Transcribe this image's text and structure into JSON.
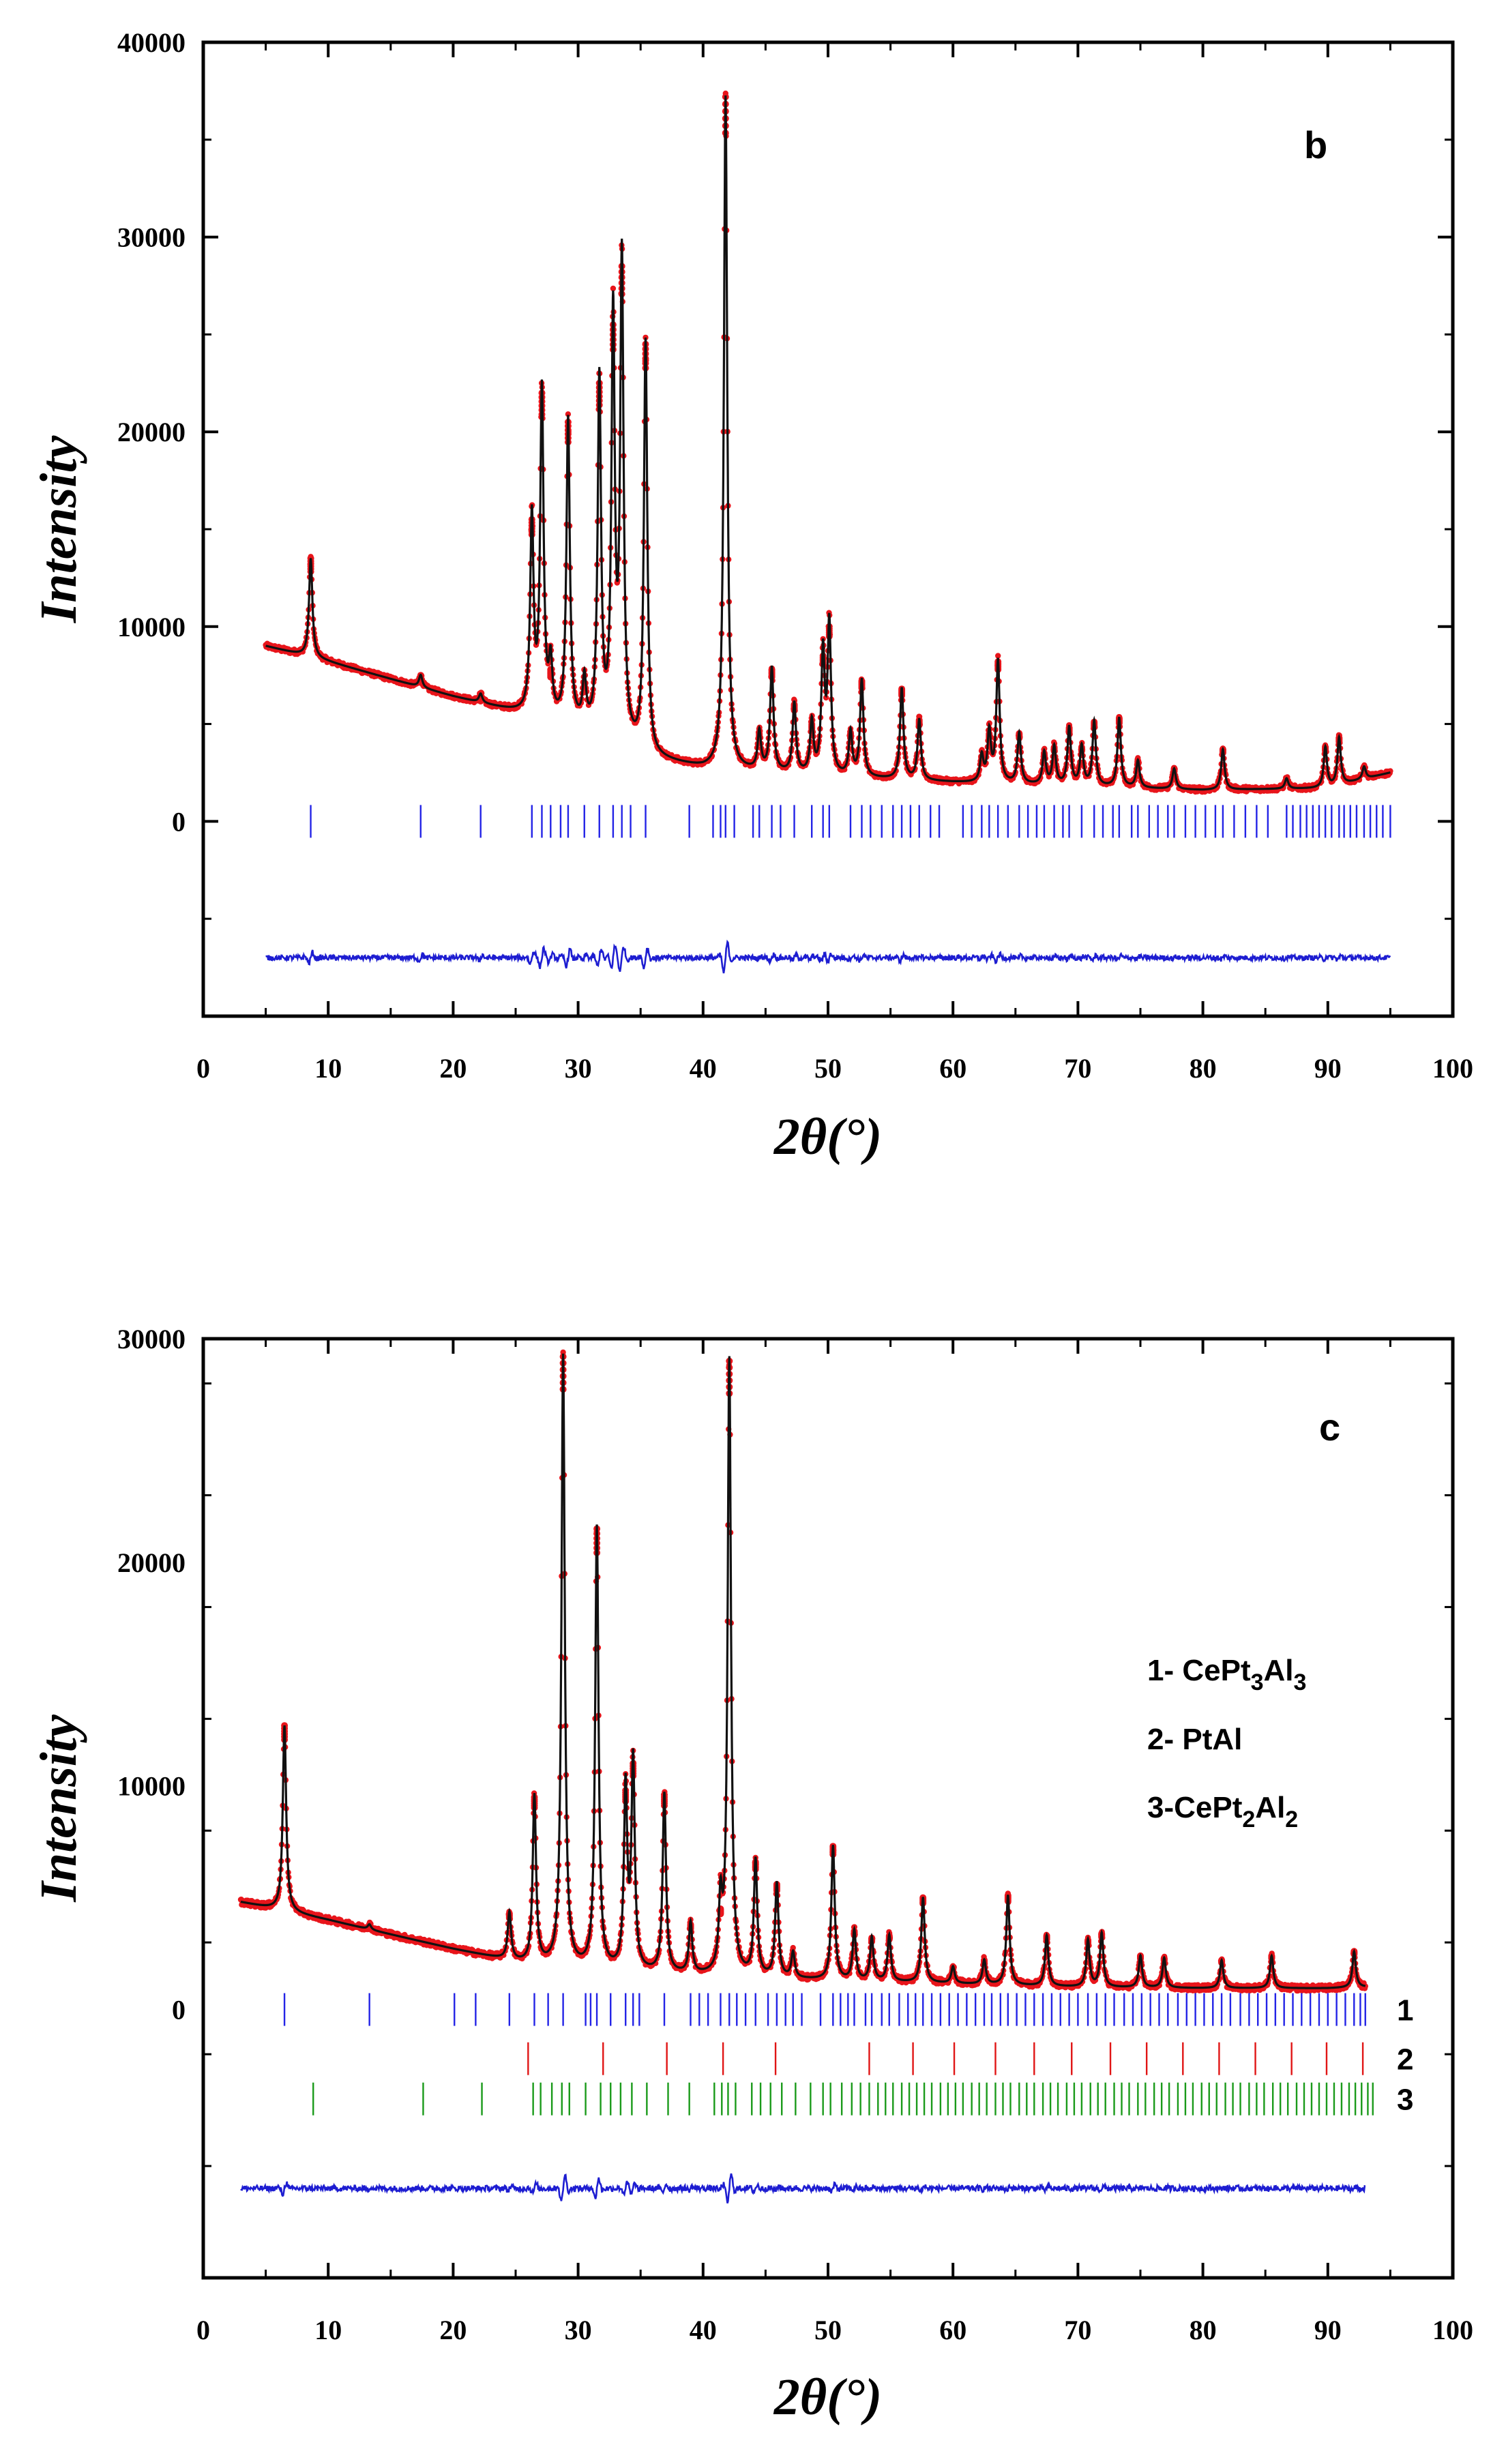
{
  "chart_data": [
    {
      "type": "line",
      "panel_label": "b",
      "title": "",
      "xlabel": "2θ(°)",
      "ylabel": "Intensity",
      "xlim": [
        0,
        100
      ],
      "ylim": [
        -10000,
        40000
      ],
      "x_ticks": [
        0,
        10,
        20,
        30,
        40,
        50,
        60,
        70,
        80,
        90,
        100
      ],
      "y_ticks": [
        0,
        10000,
        20000,
        30000,
        40000
      ],
      "x_tick_labels": [
        "0",
        "10",
        "20",
        "30",
        "40",
        "50",
        "60",
        "70",
        "80",
        "90",
        "100"
      ],
      "y_tick_labels": [
        "0",
        "10000",
        "20000",
        "30000",
        "40000"
      ],
      "background": {
        "x": [
          5,
          10,
          20,
          30,
          36,
          40,
          50,
          60,
          70,
          80,
          90,
          95
        ],
        "y": [
          9000,
          8200,
          6400,
          4800,
          3200,
          2700,
          2300,
          2000,
          1800,
          1600,
          1700,
          2500
        ]
      },
      "peaks": [
        {
          "x": 8.6,
          "y": 13500
        },
        {
          "x": 17.4,
          "y": 7500
        },
        {
          "x": 22.2,
          "y": 6500
        },
        {
          "x": 26.3,
          "y": 15500
        },
        {
          "x": 27.1,
          "y": 22000
        },
        {
          "x": 27.8,
          "y": 7800
        },
        {
          "x": 29.2,
          "y": 20500
        },
        {
          "x": 30.5,
          "y": 7000
        },
        {
          "x": 31.7,
          "y": 22500
        },
        {
          "x": 32.8,
          "y": 25500
        },
        {
          "x": 33.5,
          "y": 28500
        },
        {
          "x": 35.4,
          "y": 24500
        },
        {
          "x": 41.8,
          "y": 37200
        },
        {
          "x": 44.5,
          "y": 4500
        },
        {
          "x": 45.5,
          "y": 7800
        },
        {
          "x": 47.3,
          "y": 6000
        },
        {
          "x": 48.7,
          "y": 5000
        },
        {
          "x": 49.6,
          "y": 8500
        },
        {
          "x": 50.1,
          "y": 10000
        },
        {
          "x": 51.8,
          "y": 4500
        },
        {
          "x": 52.7,
          "y": 7200
        },
        {
          "x": 55.9,
          "y": 6800
        },
        {
          "x": 57.3,
          "y": 5200
        },
        {
          "x": 62.3,
          "y": 3300
        },
        {
          "x": 62.9,
          "y": 4500
        },
        {
          "x": 63.6,
          "y": 8200
        },
        {
          "x": 65.3,
          "y": 4500
        },
        {
          "x": 67.3,
          "y": 3500
        },
        {
          "x": 68.1,
          "y": 3800
        },
        {
          "x": 69.3,
          "y": 4800
        },
        {
          "x": 70.3,
          "y": 3800
        },
        {
          "x": 71.3,
          "y": 5100
        },
        {
          "x": 73.3,
          "y": 5300
        },
        {
          "x": 74.8,
          "y": 3100
        },
        {
          "x": 77.7,
          "y": 2700
        },
        {
          "x": 81.6,
          "y": 3700
        },
        {
          "x": 86.7,
          "y": 2200
        },
        {
          "x": 89.8,
          "y": 3800
        },
        {
          "x": 90.9,
          "y": 4300
        },
        {
          "x": 92.9,
          "y": 2800
        }
      ],
      "series": [
        {
          "name": "observed",
          "color": "#e8151b",
          "style": "dots"
        },
        {
          "name": "calculated",
          "color": "#111111",
          "style": "line"
        },
        {
          "name": "difference",
          "color": "#1d1dd1",
          "style": "line",
          "offset": -7000,
          "range": [
            5,
            95
          ]
        }
      ],
      "bragg_rows": [
        {
          "label": "",
          "color": "#2323e6",
          "y_center": 0,
          "positions": [
            8.6,
            17.4,
            22.2,
            26.3,
            27.1,
            27.8,
            28.6,
            29.2,
            30.5,
            31.7,
            32.8,
            33.5,
            34.2,
            35.4,
            38.9,
            40.8,
            41.4,
            41.8,
            42.5,
            44.0,
            44.5,
            45.5,
            46.2,
            47.3,
            48.7,
            49.6,
            50.1,
            51.8,
            52.7,
            53.4,
            54.3,
            55.2,
            55.9,
            56.6,
            57.3,
            58.2,
            58.9,
            60.8,
            61.5,
            62.3,
            62.9,
            63.6,
            64.4,
            65.3,
            66.0,
            66.7,
            67.3,
            68.1,
            68.8,
            69.3,
            70.3,
            71.3,
            72.0,
            72.8,
            73.3,
            74.3,
            74.8,
            75.7,
            76.4,
            77.2,
            77.7,
            78.6,
            79.4,
            80.2,
            81.0,
            81.6,
            82.5,
            83.4,
            84.3,
            85.2,
            86.7,
            87.2,
            87.8,
            88.3,
            88.8,
            89.3,
            89.8,
            90.3,
            90.9,
            91.3,
            91.8,
            92.3,
            92.9,
            93.4,
            93.9,
            94.4,
            95.0
          ]
        }
      ]
    },
    {
      "type": "line",
      "panel_label": "c",
      "title": "",
      "xlabel": "2θ(°)",
      "ylabel": "Intensity",
      "xlim": [
        0,
        100
      ],
      "ylim": [
        -12000,
        30000
      ],
      "x_ticks": [
        0,
        10,
        20,
        30,
        40,
        50,
        60,
        70,
        80,
        90,
        100
      ],
      "y_ticks": [
        0,
        10000,
        20000,
        30000
      ],
      "x_tick_labels": [
        "0",
        "10",
        "20",
        "30",
        "40",
        "50",
        "60",
        "70",
        "80",
        "90",
        "100"
      ],
      "y_tick_labels": [
        "0",
        "10000",
        "20000",
        "30000"
      ],
      "legend": {
        "placement": "right",
        "entries": [
          {
            "text": "1- CePt",
            "sub1": "3",
            "mid": "Al",
            "sub2": "3"
          },
          {
            "text": "2- PtAl",
            "sub1": "",
            "mid": "",
            "sub2": ""
          },
          {
            "text": "3-CePt",
            "sub1": "2",
            "mid": "Al",
            "sub2": "2"
          }
        ]
      },
      "background": {
        "x": [
          3,
          10,
          20,
          26,
          30,
          40,
          50,
          60,
          70,
          80,
          90,
          93
        ],
        "y": [
          4800,
          4000,
          2700,
          2000,
          1800,
          1500,
          1300,
          1150,
          1000,
          950,
          950,
          1000
        ]
      },
      "peaks": [
        {
          "x": 6.5,
          "y": 12700
        },
        {
          "x": 13.3,
          "y": 3800
        },
        {
          "x": 24.5,
          "y": 4300
        },
        {
          "x": 26.5,
          "y": 9500
        },
        {
          "x": 28.8,
          "y": 29200
        },
        {
          "x": 31.5,
          "y": 21500
        },
        {
          "x": 33.8,
          "y": 9800
        },
        {
          "x": 34.4,
          "y": 11000
        },
        {
          "x": 36.9,
          "y": 9600
        },
        {
          "x": 39.0,
          "y": 3800
        },
        {
          "x": 41.4,
          "y": 4500
        },
        {
          "x": 42.1,
          "y": 29000
        },
        {
          "x": 44.2,
          "y": 6600
        },
        {
          "x": 45.9,
          "y": 5600
        },
        {
          "x": 47.2,
          "y": 2500
        },
        {
          "x": 50.4,
          "y": 7300
        },
        {
          "x": 52.1,
          "y": 3500
        },
        {
          "x": 53.5,
          "y": 3200
        },
        {
          "x": 54.9,
          "y": 3300
        },
        {
          "x": 57.6,
          "y": 5000
        },
        {
          "x": 60.0,
          "y": 1900
        },
        {
          "x": 62.5,
          "y": 2200
        },
        {
          "x": 64.4,
          "y": 5100
        },
        {
          "x": 67.5,
          "y": 3300
        },
        {
          "x": 70.8,
          "y": 3100
        },
        {
          "x": 71.9,
          "y": 3400
        },
        {
          "x": 75.0,
          "y": 2400
        },
        {
          "x": 76.9,
          "y": 2300
        },
        {
          "x": 81.5,
          "y": 2200
        },
        {
          "x": 85.5,
          "y": 2400
        },
        {
          "x": 92.1,
          "y": 2600
        }
      ],
      "series": [
        {
          "name": "observed",
          "color": "#e8151b",
          "style": "dots"
        },
        {
          "name": "calculated",
          "color": "#111111",
          "style": "line"
        },
        {
          "name": "difference",
          "color": "#1d1dd1",
          "style": "line",
          "offset": -8000,
          "range": [
            3,
            93
          ]
        }
      ],
      "bragg_rows": [
        {
          "label": "1",
          "color": "#2323e6",
          "y_center": 0,
          "positions": [
            6.5,
            13.3,
            20.1,
            21.8,
            24.5,
            26.5,
            27.6,
            28.8,
            30.6,
            31.0,
            31.5,
            32.6,
            33.8,
            34.4,
            34.9,
            36.9,
            39.0,
            39.7,
            40.4,
            41.4,
            42.1,
            42.7,
            43.4,
            44.2,
            45.2,
            45.9,
            46.6,
            47.2,
            47.9,
            49.4,
            50.4,
            51.0,
            51.6,
            52.1,
            53.0,
            53.5,
            54.3,
            54.9,
            55.7,
            56.4,
            57.0,
            57.6,
            58.3,
            59.0,
            59.7,
            60.4,
            61.1,
            61.8,
            62.5,
            63.1,
            63.8,
            64.4,
            65.1,
            65.8,
            66.5,
            67.2,
            67.9,
            68.6,
            69.3,
            70.0,
            70.8,
            71.5,
            72.2,
            72.9,
            73.7,
            74.4,
            75.1,
            75.8,
            76.5,
            77.2,
            78.0,
            78.7,
            79.4,
            80.1,
            80.8,
            81.5,
            82.2,
            83.0,
            83.7,
            84.4,
            85.1,
            85.8,
            86.5,
            87.2,
            87.9,
            88.6,
            89.3,
            90.0,
            90.7,
            91.4,
            92.1,
            92.6,
            93.0
          ]
        },
        {
          "label": "2",
          "color": "#e01515",
          "y_center": -2200,
          "positions": [
            26.0,
            32.0,
            37.1,
            41.6,
            45.8,
            53.3,
            56.8,
            60.1,
            63.4,
            66.5,
            69.5,
            72.6,
            75.5,
            78.4,
            81.3,
            84.2,
            87.1,
            89.9,
            92.8
          ]
        },
        {
          "label": "3",
          "color": "#1a9a1a",
          "y_center": -4000,
          "positions": [
            8.8,
            17.6,
            22.3,
            26.4,
            27.0,
            27.9,
            28.7,
            29.3,
            30.6,
            31.8,
            32.6,
            33.4,
            34.3,
            35.5,
            37.2,
            38.9,
            40.9,
            41.5,
            42.0,
            42.6,
            43.9,
            44.6,
            45.4,
            46.3,
            47.4,
            48.6,
            49.6,
            50.2,
            51.1,
            51.9,
            52.6,
            53.3,
            54.0,
            54.6,
            55.2,
            55.9,
            56.5,
            57.1,
            57.7,
            58.3,
            59.0,
            59.6,
            60.2,
            60.8,
            61.5,
            62.1,
            62.7,
            63.4,
            64.0,
            64.6,
            65.3,
            65.9,
            66.5,
            67.2,
            67.8,
            68.4,
            69.1,
            69.7,
            70.3,
            71.0,
            71.6,
            72.2,
            72.9,
            73.5,
            74.1,
            74.8,
            75.4,
            76.1,
            76.7,
            77.3,
            78.0,
            78.6,
            79.2,
            79.9,
            80.5,
            81.1,
            81.8,
            82.4,
            83.0,
            83.7,
            84.3,
            84.9,
            85.6,
            86.2,
            86.8,
            87.5,
            88.1,
            88.7,
            89.3,
            89.9,
            90.5,
            91.1,
            91.7,
            92.2,
            92.7,
            93.2,
            93.6
          ]
        }
      ]
    }
  ]
}
